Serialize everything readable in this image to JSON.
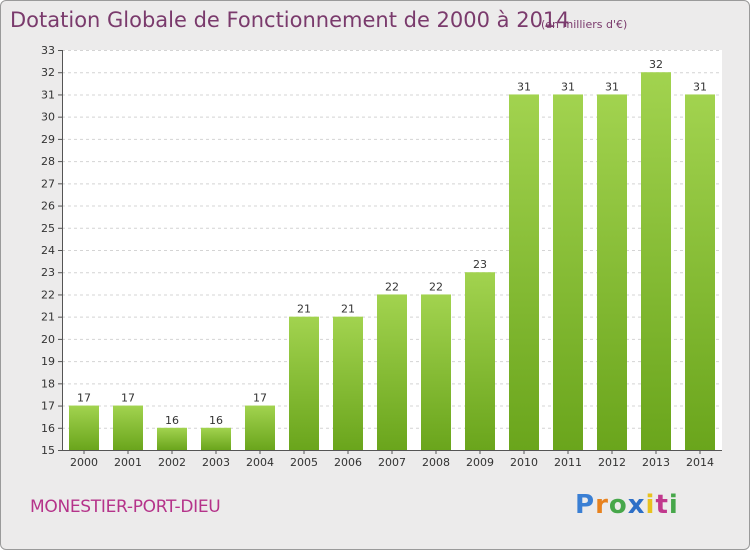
{
  "header": {
    "title": "Dotation Globale de Fonctionnement de 2000 à 2014",
    "subtitle": "(en milliers d'€)"
  },
  "footer": {
    "town": "MONESTIER-PORT-DIEU",
    "logo_letters": [
      "P",
      "r",
      "o",
      "x",
      "i",
      "t",
      "i"
    ]
  },
  "chart_data": {
    "type": "bar",
    "title": "Dotation Globale de Fonctionnement de 2000 à 2014",
    "subtitle": "(en milliers d'€)",
    "xlabel": "",
    "ylabel": "",
    "categories": [
      "2000",
      "2001",
      "2002",
      "2003",
      "2004",
      "2005",
      "2006",
      "2007",
      "2008",
      "2009",
      "2010",
      "2011",
      "2012",
      "2013",
      "2014"
    ],
    "values": [
      17,
      17,
      16,
      16,
      17,
      21,
      21,
      22,
      22,
      23,
      31,
      31,
      31,
      32,
      31
    ],
    "ylim": [
      15,
      33
    ],
    "yticks": [
      15,
      16,
      17,
      18,
      19,
      20,
      21,
      22,
      23,
      24,
      25,
      26,
      27,
      28,
      29,
      30,
      31,
      32,
      33
    ],
    "grid": true,
    "bar_color": "#7fbe2d",
    "bar_color_light": "#a2d34f",
    "bar_color_dark": "#6aa51c"
  }
}
